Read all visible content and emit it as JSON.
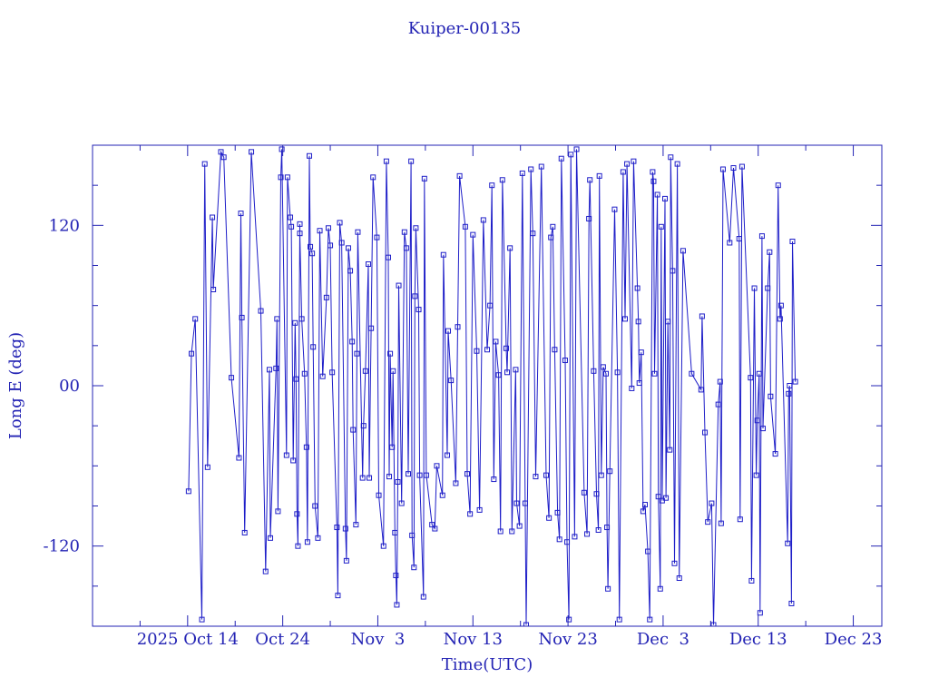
{
  "chart_data": {
    "type": "line",
    "title": "Kuiper-00135",
    "xlabel": "Time(UTC)",
    "ylabel": "Long E (deg)",
    "color": "#1e1ec8",
    "xlim": [
      277,
      360
    ],
    "ylim": [
      -180,
      180
    ],
    "xticks": [
      {
        "value": 287,
        "label": "2025 Oct 14"
      },
      {
        "value": 297,
        "label": "Oct 24"
      },
      {
        "value": 307,
        "label": "Nov  3"
      },
      {
        "value": 317,
        "label": "Nov 13"
      },
      {
        "value": 327,
        "label": "Nov 23"
      },
      {
        "value": 337,
        "label": "Dec  3"
      },
      {
        "value": 347,
        "label": "Dec 13"
      },
      {
        "value": 357,
        "label": "Dec 23"
      }
    ],
    "yticks": [
      -120,
      {
        "value": 0,
        "label": "00"
      },
      120
    ],
    "xminor": [
      282,
      292,
      302,
      312,
      322,
      332,
      342,
      352
    ],
    "yminor": [
      -150,
      -90,
      -60,
      -30,
      30,
      60,
      90,
      150
    ],
    "x": [
      287.1,
      287.4,
      287.8,
      288.5,
      288.8,
      289.1,
      289.6,
      289.7,
      290.5,
      290.8,
      291.6,
      292.4,
      292.6,
      292.7,
      293.0,
      293.7,
      294.7,
      295.2,
      295.6,
      295.7,
      296.3,
      296.4,
      296.5,
      296.8,
      296.9,
      297.4,
      297.5,
      297.8,
      297.9,
      298.1,
      298.3,
      298.4,
      298.5,
      298.6,
      298.8,
      298.8,
      299.0,
      299.3,
      299.5,
      299.6,
      299.8,
      299.9,
      300.1,
      300.2,
      300.4,
      300.7,
      300.9,
      301.2,
      301.6,
      301.8,
      302.0,
      302.2,
      302.7,
      302.8,
      303.0,
      303.2,
      303.6,
      303.7,
      303.9,
      304.1,
      304.3,
      304.4,
      304.7,
      304.8,
      304.9,
      305.4,
      305.5,
      305.7,
      306.0,
      306.1,
      306.3,
      306.5,
      306.9,
      307.1,
      307.6,
      307.9,
      308.1,
      308.2,
      308.3,
      308.5,
      308.6,
      308.8,
      308.9,
      309.0,
      309.1,
      309.2,
      309.5,
      309.8,
      310.0,
      310.2,
      310.5,
      310.6,
      310.8,
      310.9,
      311.0,
      311.3,
      311.4,
      311.8,
      311.9,
      312.1,
      312.7,
      313.0,
      313.2,
      313.8,
      313.9,
      314.3,
      314.4,
      314.7,
      315.2,
      315.4,
      315.6,
      316.2,
      316.4,
      316.7,
      317.0,
      317.4,
      317.7,
      318.1,
      318.5,
      318.8,
      319.0,
      319.2,
      319.4,
      319.7,
      319.9,
      320.1,
      320.5,
      320.6,
      320.9,
      321.1,
      321.5,
      321.6,
      321.9,
      322.2,
      322.5,
      322.6,
      323.1,
      323.3,
      323.6,
      324.2,
      324.7,
      325.0,
      325.2,
      325.4,
      325.6,
      325.9,
      326.1,
      326.3,
      326.7,
      326.9,
      327.1,
      327.3,
      327.7,
      327.9,
      328.7,
      329.0,
      329.2,
      329.3,
      329.7,
      330.0,
      330.2,
      330.3,
      330.5,
      330.7,
      331.0,
      331.1,
      331.2,
      331.4,
      331.9,
      332.2,
      332.4,
      332.8,
      333.0,
      333.2,
      333.7,
      333.9,
      334.3,
      334.4,
      334.5,
      334.7,
      334.9,
      335.1,
      335.4,
      335.6,
      335.9,
      336.0,
      336.1,
      336.4,
      336.5,
      336.7,
      336.8,
      336.9,
      337.2,
      337.3,
      337.5,
      337.7,
      337.8,
      338.0,
      338.2,
      338.5,
      338.7,
      339.1,
      340.0,
      341.0,
      341.1,
      341.4,
      341.7,
      342.1,
      342.3,
      342.8,
      343.0,
      343.1,
      343.3,
      344.0,
      344.4,
      345.0,
      345.1,
      345.3,
      346.2,
      346.3,
      346.6,
      346.8,
      346.9,
      347.1,
      347.2,
      347.4,
      347.5,
      348.0,
      348.2,
      348.3,
      348.8,
      349.1,
      349.3,
      349.4,
      350.1,
      350.2,
      350.3,
      350.5,
      350.6,
      350.9
    ],
    "values": [
      -79,
      24,
      50,
      -175,
      166,
      -61,
      126,
      72,
      175,
      171,
      6,
      -54,
      129,
      51,
      -110,
      175,
      56,
      -139,
      12,
      -114,
      13,
      50,
      -94,
      156,
      177,
      -52,
      156,
      126,
      119,
      -56,
      47,
      5,
      -96,
      -120,
      121,
      114,
      50,
      9,
      -46,
      -117,
      172,
      104,
      99,
      29,
      -90,
      -114,
      116,
      7,
      66,
      118,
      105,
      10,
      -106,
      -157,
      122,
      107,
      -107,
      -131,
      103,
      86,
      33,
      -33,
      -104,
      24,
      115,
      -69,
      -30,
      11,
      91,
      -69,
      43,
      156,
      111,
      -82,
      -120,
      168,
      96,
      -68,
      24,
      -46,
      11,
      -110,
      -142,
      -164,
      -72,
      75,
      -88,
      115,
      103,
      -66,
      168,
      -112,
      -136,
      67,
      118,
      57,
      -67,
      -158,
      155,
      -67,
      -104,
      -107,
      -60,
      -82,
      98,
      -52,
      41,
      4,
      -73,
      44,
      157,
      119,
      -66,
      -96,
      113,
      26,
      -93,
      124,
      27,
      60,
      150,
      -70,
      33,
      8,
      -109,
      154,
      28,
      10,
      103,
      -109,
      12,
      -88,
      -105,
      159,
      -88,
      -179,
      162,
      114,
      -68,
      164,
      -67,
      -99,
      111,
      119,
      27,
      -95,
      -115,
      170,
      19,
      -117,
      -175,
      173,
      -113,
      177,
      -80,
      -111,
      125,
      154,
      11,
      -81,
      -108,
      157,
      -67,
      14,
      9,
      -106,
      -152,
      -64,
      132,
      10,
      -175,
      160,
      50,
      166,
      -2,
      168,
      73,
      48,
      2,
      25,
      -94,
      -89,
      -124,
      -175,
      160,
      153,
      9,
      143,
      -83,
      -152,
      119,
      -86,
      140,
      -84,
      48,
      -48,
      171,
      86,
      -133,
      166,
      -144,
      101,
      9,
      -3,
      52,
      -35,
      -102,
      -88,
      -179,
      -14,
      3,
      -103,
      162,
      107,
      163,
      110,
      -100,
      164,
      6,
      -146,
      73,
      -67,
      -26,
      9,
      -170,
      112,
      -32,
      73,
      100,
      -8,
      -51,
      150,
      50,
      60,
      -118,
      -6,
      0,
      -163,
      108,
      3
    ]
  }
}
